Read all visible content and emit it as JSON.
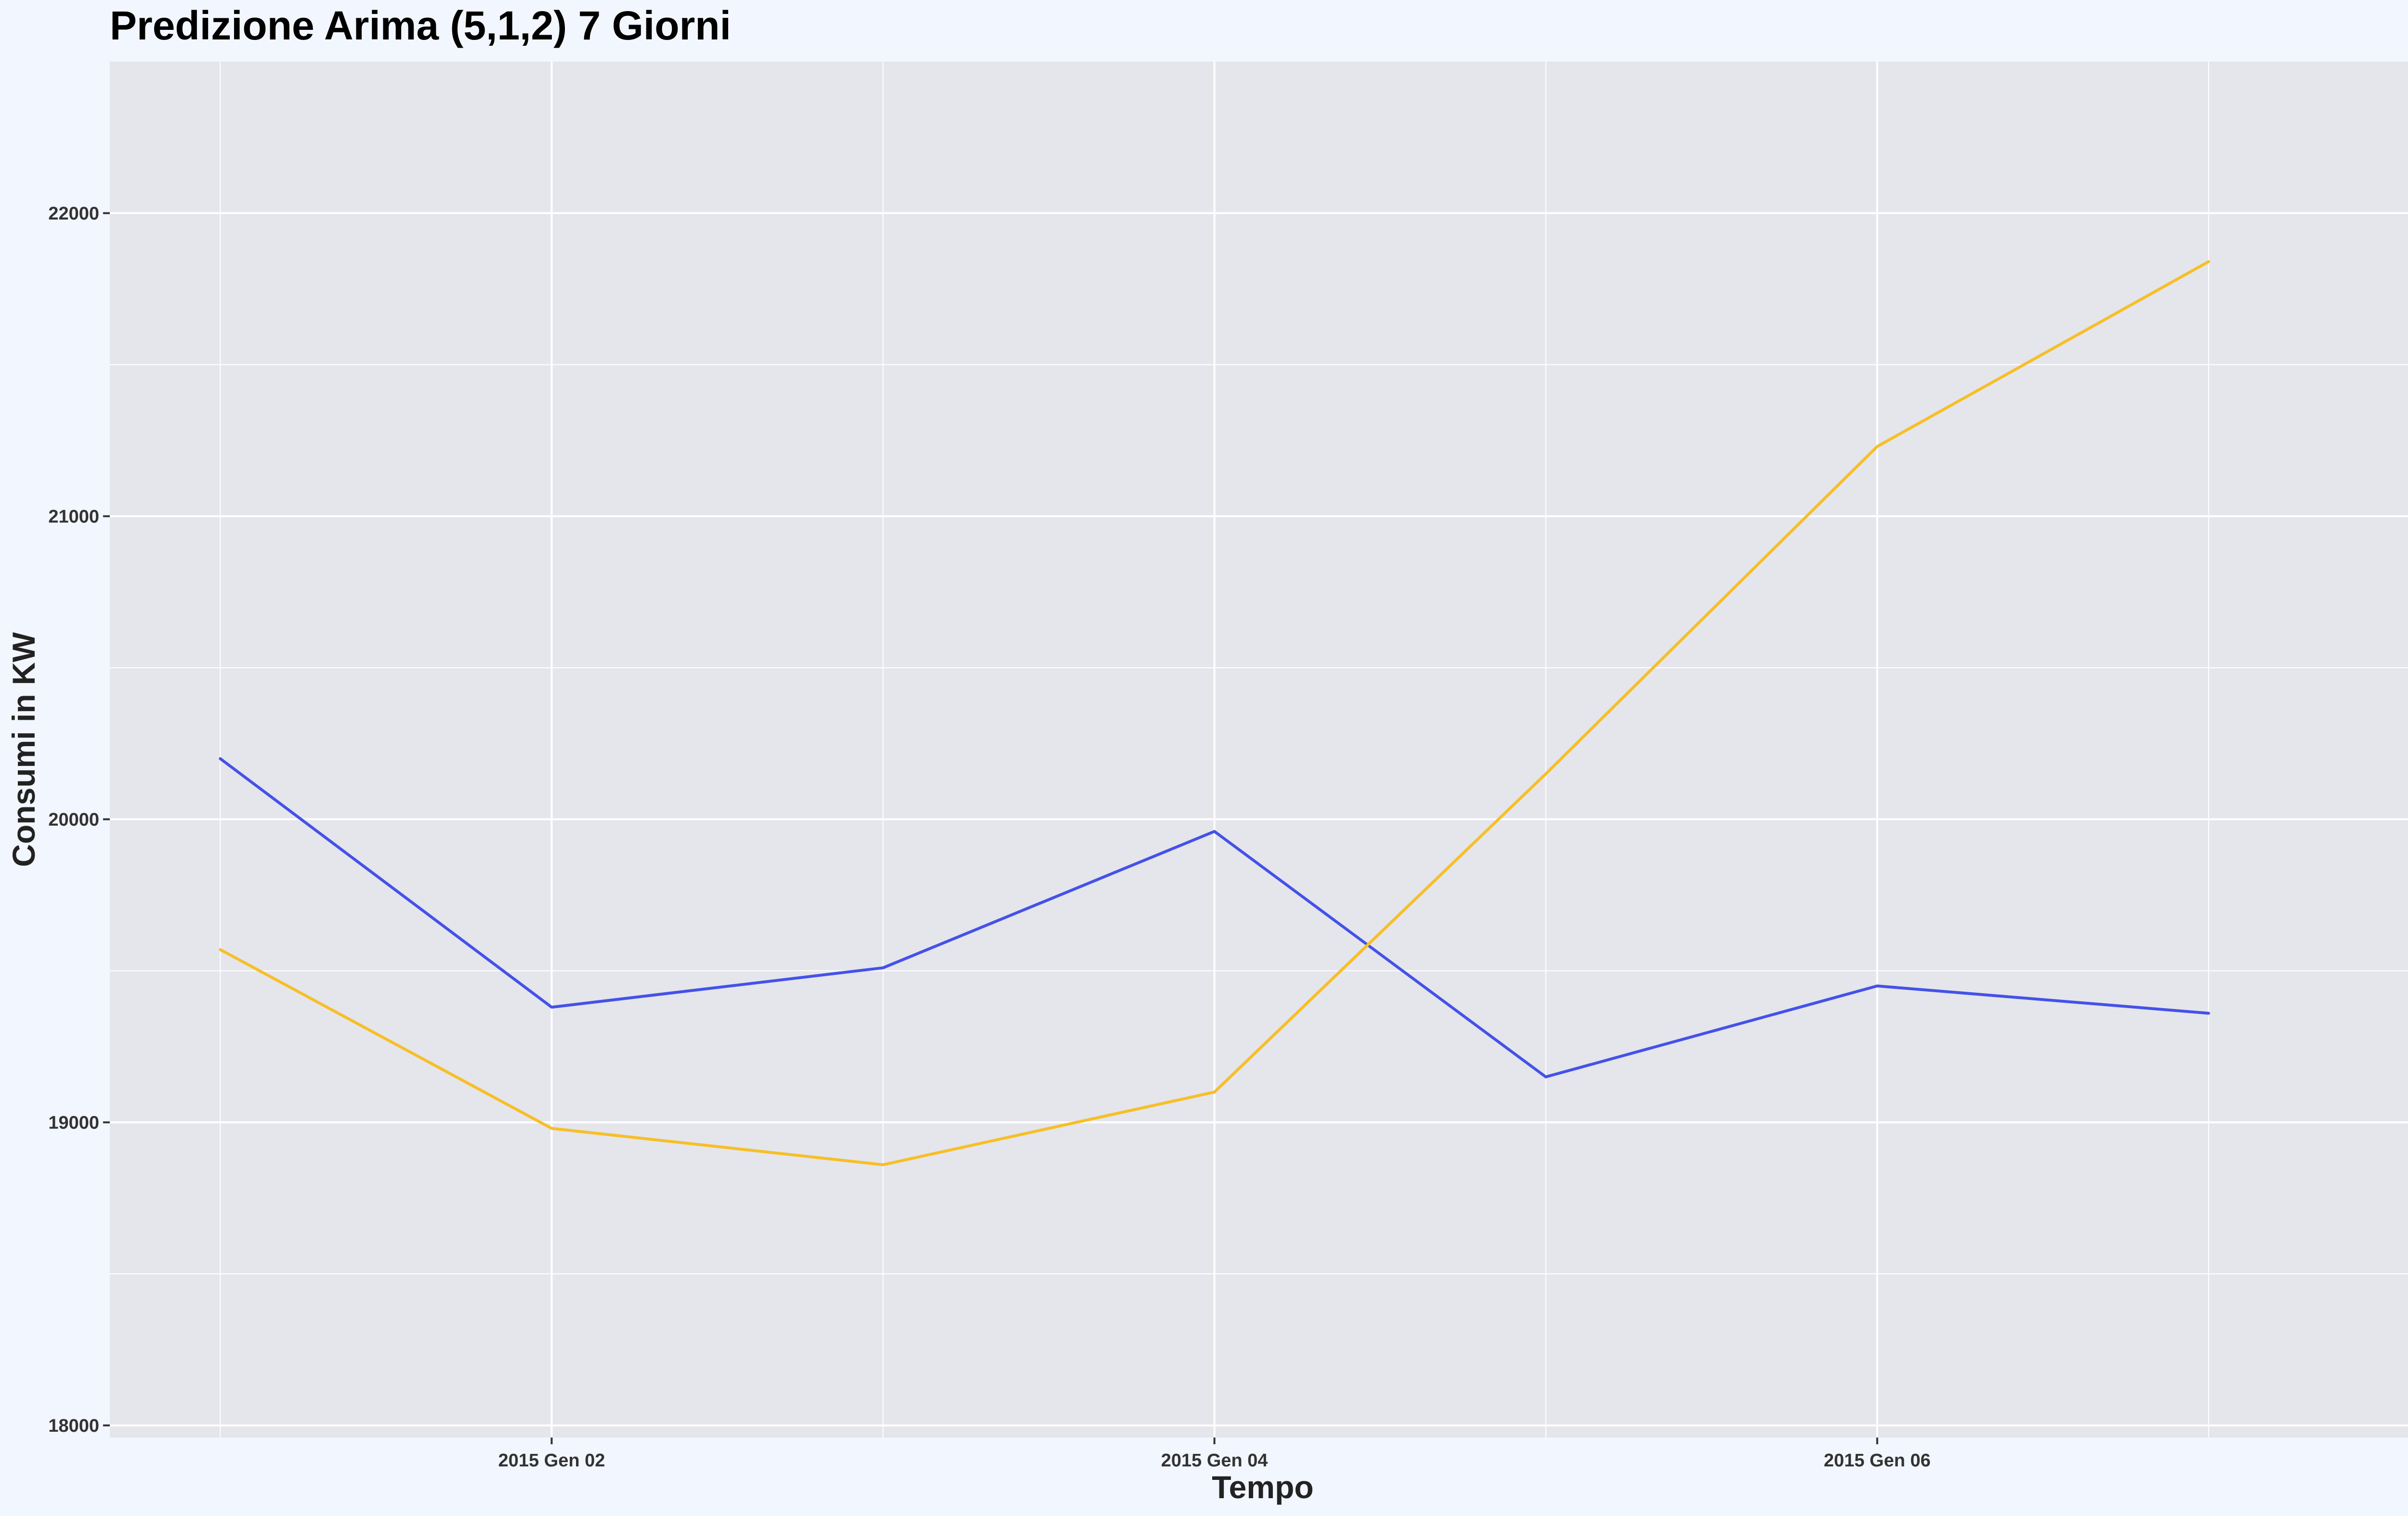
{
  "chart_data": {
    "type": "line",
    "title": "Predizione Arima (5,1,2) 7 Giorni",
    "xlabel": "Tempo",
    "ylabel": "Consumi in KW",
    "x": [
      "2015-01-01",
      "2015-01-02",
      "2015-01-03",
      "2015-01-04",
      "2015-01-05",
      "2015-01-06",
      "2015-01-07"
    ],
    "x_ticks": [
      {
        "x": "2015-01-02",
        "label": "2015 Gen 02"
      },
      {
        "x": "2015-01-04",
        "label": "2015 Gen 04"
      },
      {
        "x": "2015-01-06",
        "label": "2015 Gen 06"
      }
    ],
    "y_ticks": [
      18000,
      19000,
      20000,
      21000,
      22000
    ],
    "ylim": [
      17960,
      22500
    ],
    "xlim": [
      "2014-12-31T16:00",
      "2015-01-07T15:00"
    ],
    "grid": true,
    "legend": "none",
    "series": [
      {
        "color": "#4452e8",
        "values": [
          20200,
          19380,
          19510,
          19960,
          19150,
          19450,
          19360
        ]
      },
      {
        "color": "#f6bf26",
        "values": [
          19570,
          18980,
          18860,
          19100,
          20150,
          21230,
          21840
        ]
      }
    ]
  },
  "colors": {
    "page_background": "#f2f6fe",
    "panel_background": "#e5e5ec",
    "grid": "#ffffff"
  }
}
